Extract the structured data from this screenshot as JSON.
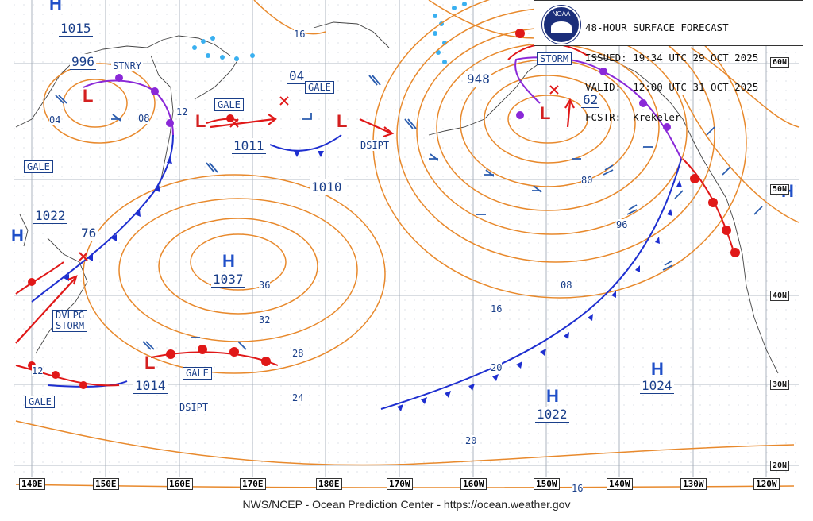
{
  "header": {
    "title": "48-HOUR SURFACE FORECAST",
    "issued": "ISSUED: 19:34 UTC 29 OCT 2025",
    "valid": "VALID:  12:00 UTC 31 OCT 2025",
    "forecaster": "FCSTR:  Krekeler",
    "logo_text": "NOAA"
  },
  "footer": "NWS/NCEP - Ocean Prediction Center - https://ocean.weather.gov",
  "colors": {
    "isobar": "#e8892c",
    "high": "#1f4fc8",
    "low": "#d42020",
    "cold_front": "#1e2fd0",
    "warm_front": "#e01818",
    "occluded_front": "#8a28d8",
    "stationary_front": "#3ab0f0",
    "wind_barb": "#2a5cae",
    "box_text": "#1a3f8a",
    "grid": "#9aa4b0"
  },
  "longitude_labels": [
    "140E",
    "150E",
    "160E",
    "170E",
    "180E",
    "170W",
    "160W",
    "150W",
    "140W",
    "130W",
    "120W"
  ],
  "latitude_labels": [
    "60N",
    "50N",
    "40N",
    "30N",
    "20N"
  ],
  "systems": {
    "highs": [
      {
        "label": "H",
        "pressure": "1037"
      },
      {
        "label": "H",
        "pressure": "1022"
      },
      {
        "label": "H",
        "pressure": "1024"
      },
      {
        "label": "H",
        "pressure": ""
      },
      {
        "label": "H",
        "pressure": ""
      },
      {
        "label": "H",
        "pressure": ""
      }
    ],
    "lows": [
      {
        "label": "L",
        "pressure": "996"
      },
      {
        "label": "L",
        "pressure": "1011"
      },
      {
        "label": "L",
        "pressure": "04"
      },
      {
        "label": "L",
        "pressure": "948"
      },
      {
        "label": "L",
        "pressure": "1014"
      }
    ],
    "pressure_boxes": [
      "1015",
      "1010",
      "1022",
      "76",
      "62"
    ]
  },
  "warnings": {
    "stnry": "STNRY",
    "gale_1": "GALE",
    "gale_2": "GALE",
    "gale_3": "GALE",
    "gale_4": "GALE",
    "gale_5": "GALE",
    "storm_1": "STORM",
    "dvlpg_storm_line1": "DVLPG",
    "dvlpg_storm_line2": "STORM",
    "dsipt_1": "DSIPT",
    "dsipt_2": "DSIPT"
  },
  "isobar_labels": [
    "16",
    "12",
    "04",
    "08",
    "36",
    "32",
    "28",
    "24",
    "20",
    "16",
    "08",
    "96",
    "80",
    "20",
    "16",
    "12"
  ]
}
